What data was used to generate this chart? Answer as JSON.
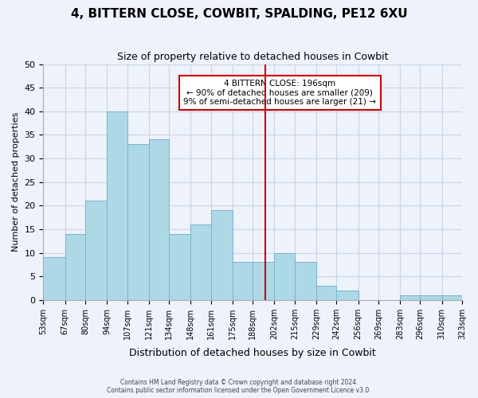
{
  "title": "4, BITTERN CLOSE, COWBIT, SPALDING, PE12 6XU",
  "subtitle": "Size of property relative to detached houses in Cowbit",
  "xlabel": "Distribution of detached houses by size in Cowbit",
  "ylabel": "Number of detached properties",
  "bar_color": "#add8e6",
  "bar_edge_color": "#7ab3d0",
  "bins": [
    53,
    67,
    80,
    94,
    107,
    121,
    134,
    148,
    161,
    175,
    188,
    202,
    215,
    229,
    242,
    256,
    269,
    283,
    296,
    310,
    323
  ],
  "counts": [
    9,
    14,
    21,
    40,
    33,
    34,
    14,
    16,
    19,
    8,
    8,
    10,
    8,
    3,
    2,
    0,
    0,
    1,
    1,
    1
  ],
  "tick_labels": [
    "53sqm",
    "67sqm",
    "80sqm",
    "94sqm",
    "107sqm",
    "121sqm",
    "134sqm",
    "148sqm",
    "161sqm",
    "175sqm",
    "188sqm",
    "202sqm",
    "215sqm",
    "229sqm",
    "242sqm",
    "256sqm",
    "269sqm",
    "283sqm",
    "296sqm",
    "310sqm",
    "323sqm"
  ],
  "ylim": [
    0,
    50
  ],
  "yticks": [
    0,
    5,
    10,
    15,
    20,
    25,
    30,
    35,
    40,
    45,
    50
  ],
  "property_line_x": 196,
  "annotation_title": "4 BITTERN CLOSE: 196sqm",
  "annotation_line1": "← 90% of detached houses are smaller (209)",
  "annotation_line2": "9% of semi-detached houses are larger (21) →",
  "footer_line1": "Contains HM Land Registry data © Crown copyright and database right 2024.",
  "footer_line2": "Contains public sector information licensed under the Open Government Licence v3.0.",
  "background_color": "#eef2fb",
  "annotation_box_color": "#ffffff",
  "annotation_box_edge": "#cc0000",
  "vline_color": "#cc0000",
  "grid_color": "#c8d4e8"
}
